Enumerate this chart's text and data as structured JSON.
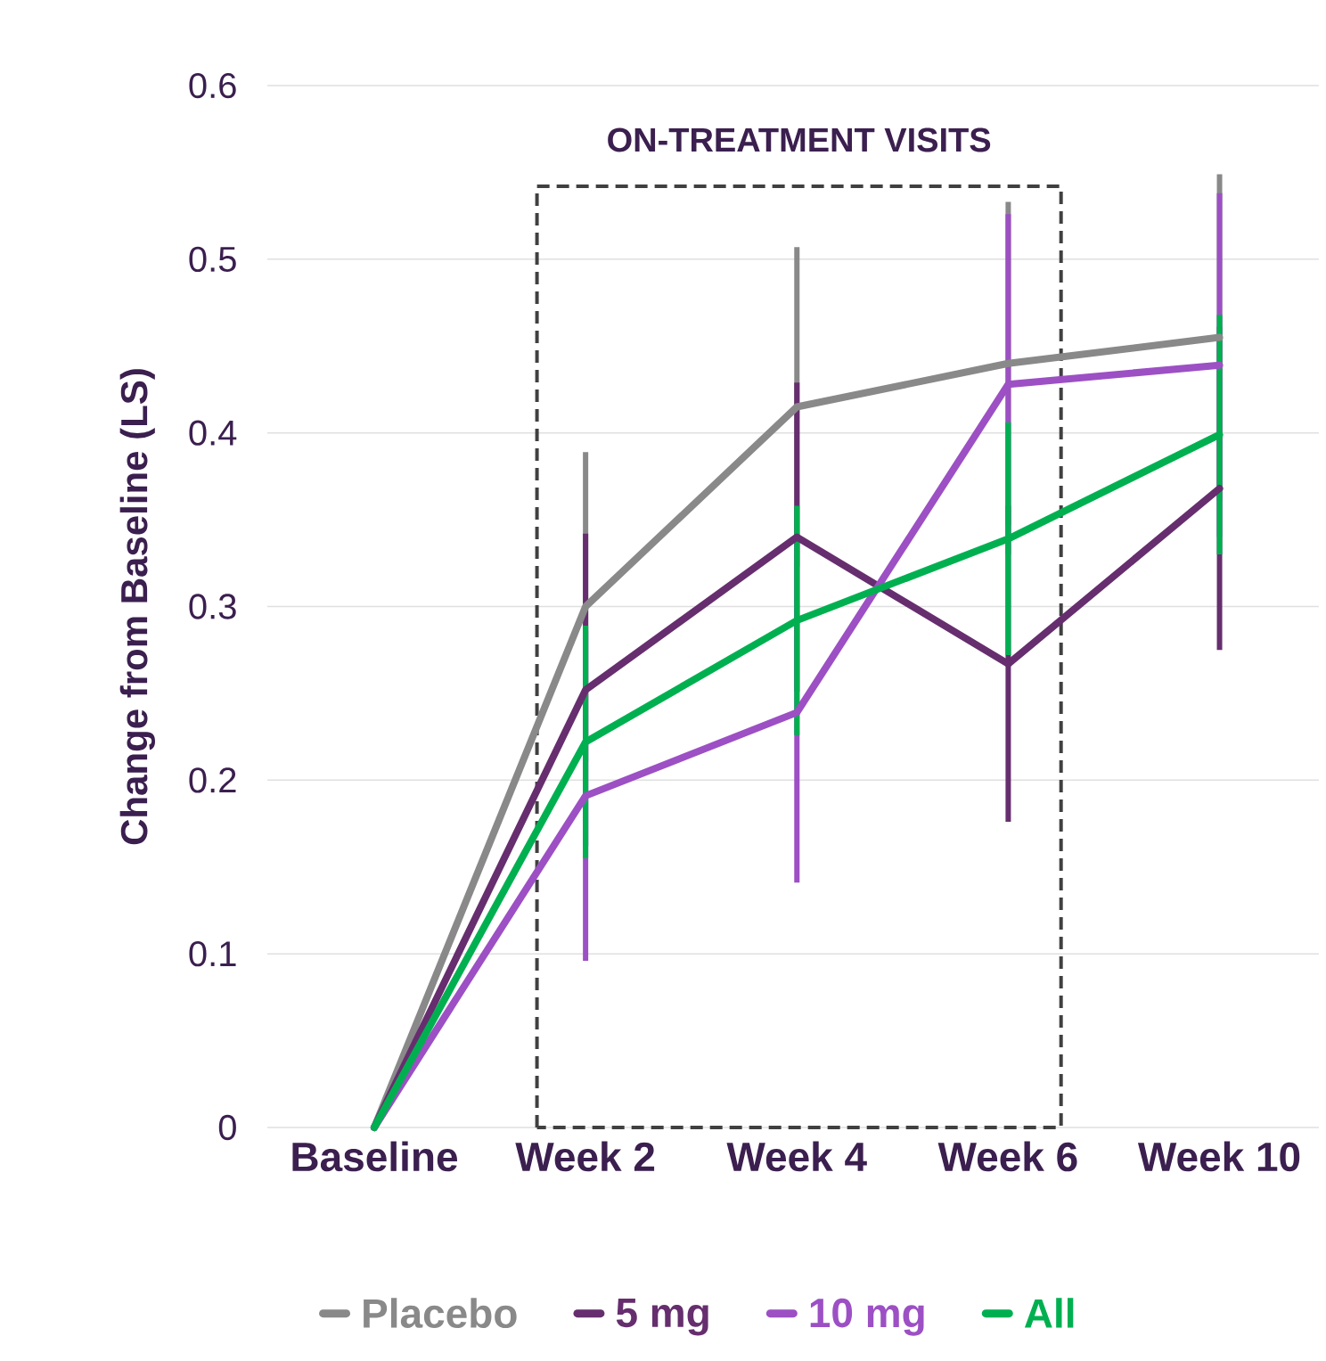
{
  "chart_data": {
    "type": "line",
    "ylabel": "Change from Baseline (LS)",
    "categories": [
      "Baseline",
      "Week 2",
      "Week 4",
      "Week 6",
      "Week 10"
    ],
    "series": [
      {
        "name": "Placebo",
        "color": "#898989",
        "values": [
          0,
          0.3,
          0.415,
          0.44,
          0.455
        ],
        "errors": [
          null,
          0.089,
          0.092,
          0.093,
          0.094
        ]
      },
      {
        "name": "5 mg",
        "color": "#662e6e",
        "values": [
          0,
          0.252,
          0.34,
          0.267,
          0.368
        ],
        "errors": [
          null,
          0.09,
          0.089,
          0.091,
          0.093
        ]
      },
      {
        "name": "10 mg",
        "color": "#9c50c4",
        "values": [
          0,
          0.191,
          0.239,
          0.428,
          0.439
        ],
        "errors": [
          null,
          0.095,
          0.098,
          0.098,
          0.099
        ]
      },
      {
        "name": "All",
        "color": "#00b050",
        "values": [
          0,
          0.222,
          0.292,
          0.339,
          0.399
        ],
        "errors": [
          null,
          0.067,
          0.066,
          0.067,
          0.069
        ]
      }
    ],
    "ylim": [
      0,
      0.6
    ],
    "yticks": [
      0,
      0.1,
      0.2,
      0.3,
      0.4,
      0.5,
      0.6
    ],
    "annotations": [
      "ON-TREATMENT VISITS"
    ],
    "grid": "y",
    "legend": "bottom",
    "marker": "none",
    "line_style": "solid"
  }
}
